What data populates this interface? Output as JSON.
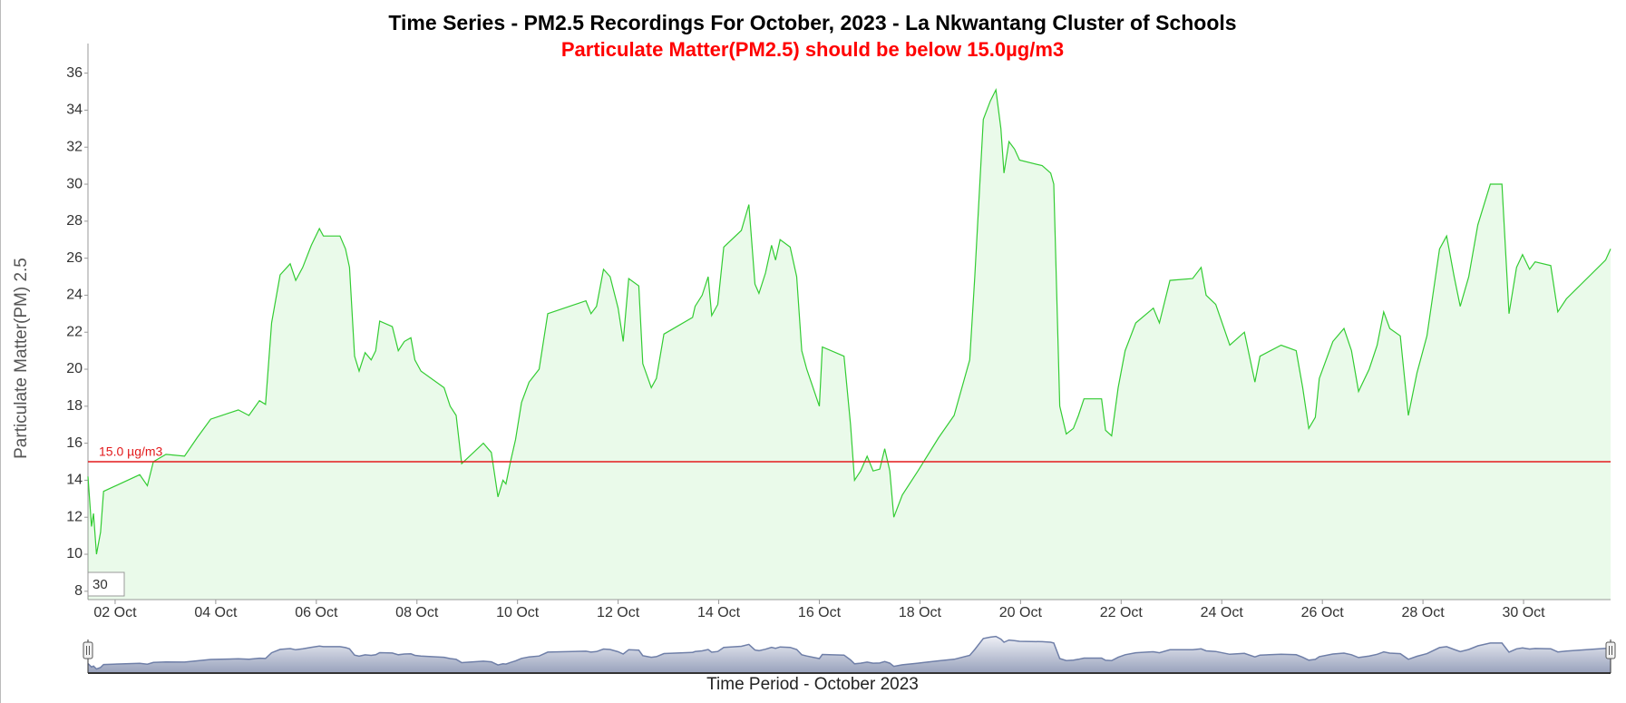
{
  "chart_data": {
    "type": "line",
    "title": "Time Series - PM2.5 Recordings For October, 2023 - La Nkwantang Cluster of Schools",
    "subtitle": "Particulate Matter(PM2.5) should be below 15.0µg/m3",
    "y_label": "Particulate Matter(PM) 2.5",
    "x_label": "Time Period - October 2023",
    "zoom_box": "30",
    "x": [
      1.46,
      1.53,
      1.57,
      1.63,
      1.71,
      1.77,
      2.49,
      2.64,
      2.76,
      3.01,
      3.38,
      3.63,
      3.9,
      4.45,
      4.66,
      4.87,
      4.99,
      5.11,
      5.28,
      5.48,
      5.59,
      5.73,
      5.9,
      6.06,
      6.14,
      6.47,
      6.58,
      6.66,
      6.76,
      6.85,
      6.97,
      7.09,
      7.18,
      7.26,
      7.51,
      7.63,
      7.75,
      7.88,
      7.96,
      8.08,
      8.54,
      8.66,
      8.78,
      8.89,
      9.32,
      9.48,
      9.61,
      9.71,
      9.77,
      9.86,
      9.96,
      10.08,
      10.23,
      10.43,
      10.6,
      11.36,
      11.46,
      11.57,
      11.71,
      11.84,
      12.0,
      12.1,
      12.21,
      12.41,
      12.49,
      12.66,
      12.76,
      12.91,
      13.48,
      13.53,
      13.67,
      13.79,
      13.86,
      13.98,
      14.1,
      14.45,
      14.6,
      14.72,
      14.8,
      14.93,
      15.05,
      15.13,
      15.22,
      15.42,
      15.55,
      15.65,
      15.75,
      16.0,
      16.06,
      16.49,
      16.62,
      16.7,
      16.82,
      16.95,
      17.07,
      17.2,
      17.3,
      17.4,
      17.48,
      17.65,
      17.96,
      18.37,
      18.68,
      18.99,
      19.09,
      19.26,
      19.4,
      19.51,
      19.61,
      19.67,
      19.77,
      19.88,
      19.98,
      20.43,
      20.6,
      20.66,
      20.78,
      20.91,
      21.05,
      21.15,
      21.26,
      21.61,
      21.69,
      21.81,
      21.94,
      22.08,
      22.29,
      22.64,
      22.76,
      22.97,
      23.42,
      23.59,
      23.69,
      23.88,
      24.16,
      24.45,
      24.66,
      24.76,
      25.18,
      25.48,
      25.61,
      25.73,
      25.86,
      25.94,
      26.21,
      26.43,
      26.58,
      26.72,
      26.93,
      27.09,
      27.22,
      27.34,
      27.55,
      27.71,
      27.88,
      28.08,
      28.33,
      28.47,
      28.62,
      28.74,
      28.91,
      29.09,
      29.34,
      29.57,
      29.71,
      29.86,
      29.98,
      30.12,
      30.23,
      30.54,
      30.68,
      30.85,
      31.63,
      31.73
    ],
    "series": [
      {
        "name": "PM2.5",
        "color": "#33cc33",
        "values": [
          14.2,
          11.5,
          12.2,
          10.0,
          11.2,
          13.4,
          14.3,
          13.7,
          15.0,
          15.4,
          15.3,
          16.3,
          17.3,
          17.8,
          17.5,
          18.3,
          18.1,
          22.5,
          25.1,
          25.7,
          24.8,
          25.5,
          26.7,
          27.6,
          27.2,
          27.2,
          26.5,
          25.5,
          20.7,
          19.9,
          20.9,
          20.5,
          21.0,
          22.6,
          22.3,
          21.0,
          21.5,
          21.7,
          20.5,
          19.9,
          19.0,
          18.0,
          17.5,
          14.9,
          16.0,
          15.5,
          13.1,
          14.0,
          13.8,
          15.0,
          16.2,
          18.2,
          19.3,
          20.0,
          23.0,
          23.7,
          23.0,
          23.4,
          25.4,
          25.0,
          23.3,
          21.5,
          24.9,
          24.5,
          20.3,
          19.0,
          19.5,
          21.9,
          22.8,
          23.4,
          24.0,
          25.0,
          22.9,
          23.5,
          26.6,
          27.5,
          28.9,
          24.6,
          24.1,
          25.2,
          26.7,
          25.9,
          27.0,
          26.6,
          25.0,
          21.0,
          20.0,
          18.0,
          21.2,
          20.7,
          17.0,
          14.0,
          14.5,
          15.3,
          14.5,
          14.6,
          15.7,
          14.5,
          12.0,
          13.2,
          14.5,
          16.3,
          17.5,
          20.5,
          25.0,
          33.5,
          34.5,
          35.1,
          33.0,
          30.6,
          32.3,
          31.9,
          31.3,
          31.0,
          30.6,
          30.0,
          18.0,
          16.5,
          16.8,
          17.5,
          18.4,
          18.4,
          16.7,
          16.4,
          19.0,
          21.0,
          22.5,
          23.3,
          22.5,
          24.8,
          24.9,
          25.5,
          24.0,
          23.5,
          21.3,
          22.0,
          19.3,
          20.7,
          21.3,
          21.0,
          19.0,
          16.8,
          17.4,
          19.5,
          21.5,
          22.2,
          21.0,
          18.8,
          20.0,
          21.3,
          23.1,
          22.2,
          21.8,
          17.5,
          19.8,
          21.8,
          26.5,
          27.2,
          25.0,
          23.4,
          25.0,
          27.8,
          30.0,
          30.0,
          23.0,
          25.5,
          26.2,
          25.4,
          25.8,
          25.6,
          23.1,
          23.8,
          25.9,
          26.5
        ]
      }
    ],
    "threshold": {
      "value": 15,
      "label": "15.0 µg/m3",
      "color": "#e31a1c"
    },
    "xlim": [
      1.46,
      31.73
    ],
    "xticks": [
      {
        "value": 2,
        "label": "02 Oct"
      },
      {
        "value": 4,
        "label": "04 Oct"
      },
      {
        "value": 6,
        "label": "06 Oct"
      },
      {
        "value": 8,
        "label": "08 Oct"
      },
      {
        "value": 10,
        "label": "10 Oct"
      },
      {
        "value": 12,
        "label": "12 Oct"
      },
      {
        "value": 14,
        "label": "14 Oct"
      },
      {
        "value": 16,
        "label": "16 Oct"
      },
      {
        "value": 18,
        "label": "18 Oct"
      },
      {
        "value": 20,
        "label": "20 Oct"
      },
      {
        "value": 22,
        "label": "22 Oct"
      },
      {
        "value": 24,
        "label": "24 Oct"
      },
      {
        "value": 26,
        "label": "26 Oct"
      },
      {
        "value": 28,
        "label": "28 Oct"
      },
      {
        "value": 30,
        "label": "30 Oct"
      }
    ],
    "ylim": [
      7.55,
      37.6
    ],
    "yticks": [
      8,
      10,
      12,
      14,
      16,
      18,
      20,
      22,
      24,
      26,
      28,
      30,
      32,
      34,
      36
    ],
    "grid": false
  }
}
